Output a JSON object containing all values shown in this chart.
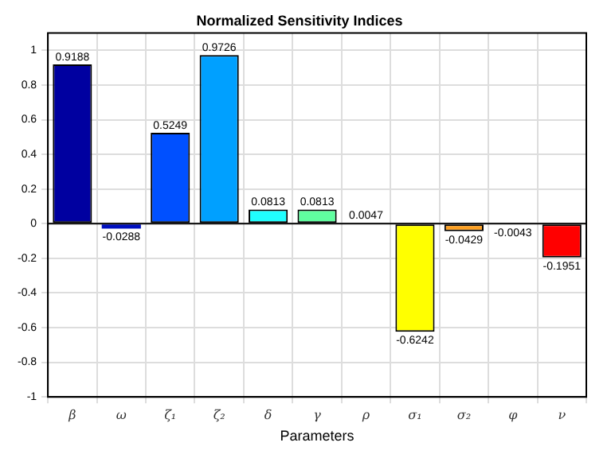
{
  "chart_data": {
    "type": "bar",
    "title": "Normalized Sensitivity Indices",
    "xlabel": "Parameters",
    "categories": [
      "β",
      "ω",
      "ζ₁",
      "ζ₂",
      "δ",
      "γ",
      "ρ",
      "σ₁",
      "σ₂",
      "φ",
      "ν"
    ],
    "values": [
      0.9188,
      -0.0288,
      0.5249,
      0.9726,
      0.0813,
      0.0813,
      0.0047,
      -0.6242,
      -0.0429,
      -0.0043,
      -0.1951
    ],
    "colors": [
      "#0000a0",
      "#0010c0",
      "#0050ff",
      "#00a0ff",
      "#20ffff",
      "#60ffa0",
      "#b0ff50",
      "#ffff00",
      "#ffa020",
      "#ff5000",
      "#ff0000"
    ],
    "data_labels": true,
    "ylim": [
      -1,
      1.1
    ],
    "yticks": [
      -1,
      -0.8,
      -0.6,
      -0.4,
      -0.2,
      0,
      0.2,
      0.4,
      0.6,
      0.8,
      1
    ],
    "grid": true,
    "legend": false
  }
}
